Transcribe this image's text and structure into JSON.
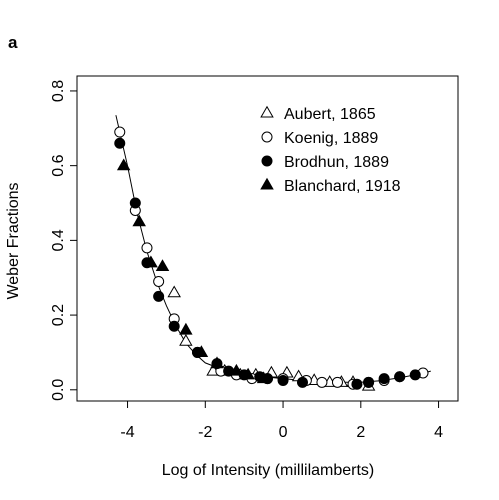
{
  "chart_data": {
    "type": "scatter",
    "panel_label": "a",
    "xlabel": "Log of Intensity (millilamberts)",
    "ylabel": "Weber Fractions",
    "xlim": [
      -5.3,
      4.5
    ],
    "ylim": [
      -0.03,
      0.84
    ],
    "x_ticks": [
      -4,
      -2,
      0,
      2,
      4
    ],
    "x_tick_labels": [
      "-4",
      "-2",
      "0",
      "2",
      "4"
    ],
    "y_ticks": [
      0.0,
      0.2,
      0.4,
      0.6,
      0.8
    ],
    "y_tick_labels": [
      "0.0",
      "0.2",
      "0.4",
      "0.6",
      "0.8"
    ],
    "grid": false,
    "legend_position": "top-right",
    "series": [
      {
        "name": "Aubert, 1865",
        "marker": "open-triangle",
        "points": [
          [
            -3.4,
            0.34
          ],
          [
            -2.8,
            0.26
          ],
          [
            -2.5,
            0.13
          ],
          [
            -1.8,
            0.05
          ],
          [
            -1.5,
            0.05
          ],
          [
            -1.1,
            0.04
          ],
          [
            -0.7,
            0.04
          ],
          [
            -0.3,
            0.045
          ],
          [
            0.1,
            0.045
          ],
          [
            0.4,
            0.035
          ],
          [
            0.8,
            0.025
          ],
          [
            1.2,
            0.02
          ],
          [
            1.5,
            0.02
          ],
          [
            1.8,
            0.02
          ],
          [
            2.2,
            0.01
          ]
        ]
      },
      {
        "name": "Koenig, 1889",
        "marker": "open-circle",
        "points": [
          [
            -4.2,
            0.69
          ],
          [
            -3.8,
            0.48
          ],
          [
            -3.5,
            0.38
          ],
          [
            -3.2,
            0.29
          ],
          [
            -2.8,
            0.19
          ],
          [
            -2.2,
            0.1
          ],
          [
            -1.6,
            0.05
          ],
          [
            -1.2,
            0.04
          ],
          [
            -0.8,
            0.03
          ],
          [
            -0.4,
            0.03
          ],
          [
            0.0,
            0.03
          ],
          [
            0.6,
            0.025
          ],
          [
            1.0,
            0.02
          ],
          [
            1.4,
            0.02
          ],
          [
            1.8,
            0.015
          ],
          [
            2.2,
            0.02
          ],
          [
            2.6,
            0.025
          ],
          [
            3.0,
            0.035
          ],
          [
            3.6,
            0.045
          ]
        ]
      },
      {
        "name": "Brodhun, 1889",
        "marker": "filled-circle",
        "points": [
          [
            -4.2,
            0.66
          ],
          [
            -3.8,
            0.5
          ],
          [
            -3.5,
            0.34
          ],
          [
            -3.2,
            0.25
          ],
          [
            -2.8,
            0.17
          ],
          [
            -2.2,
            0.1
          ],
          [
            -1.7,
            0.07
          ],
          [
            -1.4,
            0.05
          ],
          [
            -1.0,
            0.04
          ],
          [
            -0.6,
            0.035
          ],
          [
            -0.4,
            0.03
          ],
          [
            0.0,
            0.025
          ],
          [
            0.5,
            0.02
          ],
          [
            1.9,
            0.015
          ],
          [
            2.2,
            0.02
          ],
          [
            2.6,
            0.03
          ],
          [
            3.0,
            0.035
          ],
          [
            3.4,
            0.04
          ]
        ]
      },
      {
        "name": "Blanchard, 1918",
        "marker": "filled-triangle",
        "points": [
          [
            -4.1,
            0.6
          ],
          [
            -3.7,
            0.45
          ],
          [
            -3.4,
            0.34
          ],
          [
            -3.1,
            0.33
          ],
          [
            -2.5,
            0.16
          ],
          [
            -2.1,
            0.1
          ],
          [
            -1.7,
            0.07
          ],
          [
            -1.2,
            0.05
          ],
          [
            -0.9,
            0.04
          ],
          [
            -0.5,
            0.03
          ]
        ]
      }
    ],
    "fit_line": {
      "points": [
        [
          -4.3,
          0.735
        ],
        [
          -4.0,
          0.6
        ],
        [
          -3.75,
          0.47
        ],
        [
          -3.5,
          0.37
        ],
        [
          -3.25,
          0.29
        ],
        [
          -3.0,
          0.225
        ],
        [
          -2.75,
          0.17
        ],
        [
          -2.5,
          0.125
        ],
        [
          -2.25,
          0.095
        ],
        [
          -2.0,
          0.072
        ],
        [
          -1.5,
          0.052
        ],
        [
          -1.0,
          0.042
        ],
        [
          -0.5,
          0.035
        ],
        [
          0.0,
          0.03
        ],
        [
          0.5,
          0.025
        ],
        [
          1.0,
          0.022
        ],
        [
          1.5,
          0.02
        ],
        [
          2.0,
          0.02
        ],
        [
          2.5,
          0.024
        ],
        [
          3.0,
          0.032
        ],
        [
          3.5,
          0.042
        ],
        [
          3.8,
          0.05
        ]
      ]
    }
  }
}
